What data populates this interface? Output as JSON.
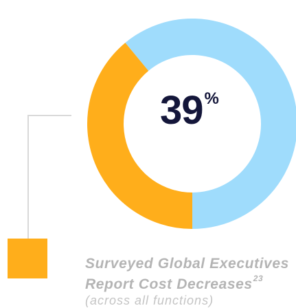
{
  "chart_data": {
    "type": "pie",
    "style": "donut",
    "slices": [
      {
        "label": "",
        "value": 39,
        "color": "#ffae1b"
      },
      {
        "label": "",
        "value": 61,
        "color": "#9fdcfc"
      }
    ],
    "center_value": "39",
    "center_unit": "%",
    "title": "",
    "legend": {
      "swatch_color": "#ffae1b",
      "line1": "Surveyed Global Executives",
      "line2": "Report Cost Decreases",
      "footnote": "23",
      "line3": "(across all functions)"
    }
  }
}
